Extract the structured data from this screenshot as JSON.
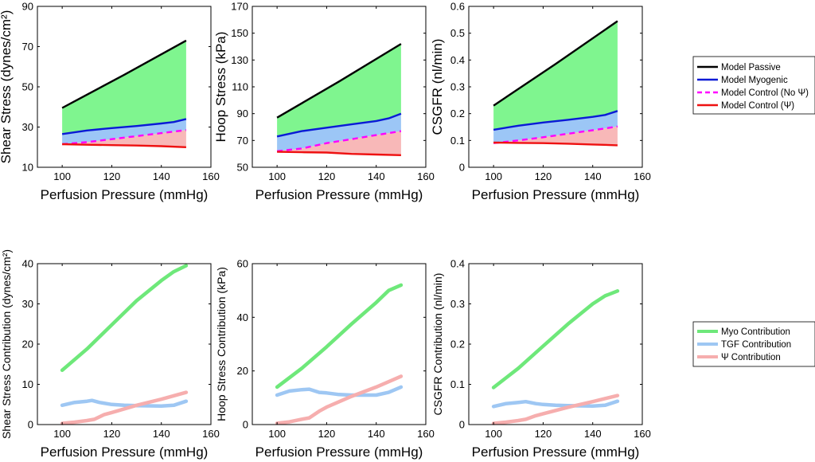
{
  "chart_data": [
    {
      "type": "area",
      "xlabel": "Perfusion Pressure (mmHg)",
      "ylabel": "Shear Stress (dynes/cm²)",
      "xlim": [
        90,
        160
      ],
      "ylim": [
        10,
        90
      ],
      "xticks": [
        "100",
        "120",
        "140",
        "160"
      ],
      "yticks": [
        "10",
        "30",
        "50",
        "70",
        "90"
      ],
      "x": [
        100,
        150
      ],
      "series": [
        {
          "name": "Model Passive",
          "x": [
            100,
            125,
            150
          ],
          "values": [
            39.5,
            56,
            73
          ]
        },
        {
          "name": "Model Myogenic",
          "x": [
            100,
            110,
            120,
            130,
            140,
            145,
            150
          ],
          "values": [
            26.5,
            28.3,
            29.5,
            30.5,
            31.8,
            32.5,
            34
          ]
        },
        {
          "name": "Model Control (No Ψ)",
          "x": [
            100,
            110,
            120,
            130,
            140,
            150
          ],
          "values": [
            21.5,
            22.5,
            24,
            25.5,
            27,
            28.5
          ]
        },
        {
          "name": "Model Control (Ψ)",
          "x": [
            100,
            110,
            120,
            130,
            140,
            150
          ],
          "values": [
            21.5,
            21.2,
            21,
            20.8,
            20.5,
            20
          ]
        }
      ]
    },
    {
      "type": "area",
      "xlabel": "Perfusion Pressure (mmHg)",
      "ylabel": "Hoop Stress (kPa)",
      "xlim": [
        90,
        160
      ],
      "ylim": [
        50,
        170
      ],
      "xticks": [
        "100",
        "120",
        "140",
        "160"
      ],
      "yticks": [
        "50",
        "70",
        "90",
        "110",
        "130",
        "150",
        "170"
      ],
      "x": [
        100,
        150
      ],
      "series": [
        {
          "name": "Model Passive",
          "x": [
            100,
            125,
            150
          ],
          "values": [
            87,
            114,
            142
          ]
        },
        {
          "name": "Model Myogenic",
          "x": [
            100,
            110,
            120,
            130,
            140,
            145,
            150
          ],
          "values": [
            73,
            77,
            79.5,
            82,
            84.5,
            86.5,
            90
          ]
        },
        {
          "name": "Model Control (No Ψ)",
          "x": [
            100,
            110,
            120,
            130,
            140,
            150
          ],
          "values": [
            62,
            64,
            68,
            71,
            74,
            77
          ]
        },
        {
          "name": "Model Control (Ψ)",
          "x": [
            100,
            110,
            120,
            130,
            140,
            150
          ],
          "values": [
            61.5,
            61.2,
            61,
            60,
            59.5,
            59
          ]
        }
      ]
    },
    {
      "type": "area",
      "xlabel": "Perfusion Pressure (mmHg)",
      "ylabel": "CSGFR (nl/min)",
      "xlim": [
        90,
        160
      ],
      "ylim": [
        0,
        0.6
      ],
      "xticks": [
        "100",
        "120",
        "140",
        "160"
      ],
      "yticks": [
        "0",
        "0.1",
        "0.2",
        "0.3",
        "0.4",
        "0.5",
        "0.6"
      ],
      "x": [
        100,
        150
      ],
      "series": [
        {
          "name": "Model Passive",
          "x": [
            100,
            125,
            150
          ],
          "values": [
            0.23,
            0.385,
            0.545
          ]
        },
        {
          "name": "Model Myogenic",
          "x": [
            100,
            110,
            120,
            130,
            140,
            145,
            150
          ],
          "values": [
            0.14,
            0.155,
            0.167,
            0.177,
            0.188,
            0.195,
            0.21
          ]
        },
        {
          "name": "Model Control (No Ψ)",
          "x": [
            100,
            110,
            120,
            130,
            140,
            150
          ],
          "values": [
            0.09,
            0.1,
            0.112,
            0.125,
            0.138,
            0.152
          ]
        },
        {
          "name": "Model Control (Ψ)",
          "x": [
            100,
            110,
            120,
            130,
            140,
            150
          ],
          "values": [
            0.092,
            0.091,
            0.09,
            0.088,
            0.085,
            0.082
          ]
        }
      ]
    },
    {
      "type": "line",
      "xlabel": "Perfusion Pressure (mmHg)",
      "ylabel": "Shear Stress Contribution (dynes/cm²)",
      "xlim": [
        90,
        160
      ],
      "ylim": [
        0,
        40
      ],
      "xticks": [
        "100",
        "120",
        "140",
        "160"
      ],
      "yticks": [
        "0",
        "10",
        "20",
        "30",
        "40"
      ],
      "series": [
        {
          "name": "Myo Contribution",
          "x": [
            100,
            110,
            120,
            130,
            140,
            145,
            150
          ],
          "values": [
            13.5,
            18.8,
            24.8,
            30.8,
            35.8,
            38,
            39.5
          ]
        },
        {
          "name": "TGF Contribution",
          "x": [
            100,
            105,
            110,
            112,
            115,
            120,
            125,
            130,
            140,
            145,
            150
          ],
          "values": [
            4.8,
            5.5,
            5.8,
            6,
            5.5,
            5,
            4.8,
            4.7,
            4.6,
            4.8,
            5.8
          ]
        },
        {
          "name": "Ψ Contribution",
          "x": [
            100,
            105,
            110,
            113,
            117,
            120,
            130,
            140,
            150
          ],
          "values": [
            0.3,
            0.6,
            1,
            1.3,
            2.5,
            3,
            4.8,
            6.3,
            8
          ]
        }
      ]
    },
    {
      "type": "line",
      "xlabel": "Perfusion Pressure (mmHg)",
      "ylabel": "Hoop Stress Contribution (kPa)",
      "xlim": [
        90,
        160
      ],
      "ylim": [
        0,
        60
      ],
      "xticks": [
        "100",
        "120",
        "140",
        "160"
      ],
      "yticks": [
        "0",
        "20",
        "40",
        "60"
      ],
      "series": [
        {
          "name": "Myo Contribution",
          "x": [
            100,
            110,
            120,
            130,
            140,
            145,
            150
          ],
          "values": [
            14,
            21,
            29,
            37.5,
            45.5,
            50,
            52
          ]
        },
        {
          "name": "TGF Contribution",
          "x": [
            100,
            105,
            110,
            113,
            117,
            120,
            125,
            130,
            140,
            145,
            150
          ],
          "values": [
            11,
            12.5,
            13,
            13.2,
            12,
            11.8,
            11.2,
            11,
            11,
            12,
            14
          ]
        },
        {
          "name": "Ψ Contribution",
          "x": [
            100,
            105,
            110,
            113,
            117,
            120,
            130,
            140,
            150
          ],
          "values": [
            0.5,
            1,
            2,
            2.5,
            5,
            6.5,
            10.5,
            14,
            18
          ]
        }
      ]
    },
    {
      "type": "line",
      "xlabel": "Perfusion Pressure (mmHg)",
      "ylabel": "CSGFR Contribution (nl/min)",
      "xlim": [
        90,
        160
      ],
      "ylim": [
        0,
        0.4
      ],
      "xticks": [
        "100",
        "120",
        "140",
        "160"
      ],
      "yticks": [
        "0",
        "0.1",
        "0.2",
        "0.3",
        "0.4"
      ],
      "series": [
        {
          "name": "Myo Contribution",
          "x": [
            100,
            110,
            120,
            130,
            140,
            145,
            150
          ],
          "values": [
            0.092,
            0.14,
            0.195,
            0.25,
            0.3,
            0.32,
            0.332
          ]
        },
        {
          "name": "TGF Contribution",
          "x": [
            100,
            105,
            110,
            113,
            117,
            120,
            125,
            130,
            140,
            145,
            150
          ],
          "values": [
            0.045,
            0.052,
            0.055,
            0.057,
            0.052,
            0.05,
            0.048,
            0.047,
            0.046,
            0.048,
            0.058
          ]
        },
        {
          "name": "Ψ Contribution",
          "x": [
            100,
            105,
            110,
            113,
            117,
            120,
            130,
            140,
            150
          ],
          "values": [
            0.003,
            0.006,
            0.01,
            0.013,
            0.022,
            0.027,
            0.043,
            0.057,
            0.072
          ]
        }
      ]
    }
  ],
  "legend_top": {
    "entries": [
      {
        "label": "Model Passive",
        "color": "#000000",
        "style": "solid"
      },
      {
        "label": "Model Myogenic",
        "color": "#0a1ad6",
        "style": "solid"
      },
      {
        "label": "Model Control (No Ψ)",
        "color": "#ff00ff",
        "style": "dashed"
      },
      {
        "label": "Model Control (Ψ)",
        "color": "#ee1111",
        "style": "solid"
      }
    ]
  },
  "legend_bottom": {
    "entries": [
      {
        "label": "Myo Contribution",
        "color": "#6ee87a"
      },
      {
        "label": "TGF Contribution",
        "color": "#9ec7f3"
      },
      {
        "label": "Ψ Contribution",
        "color": "#f6aeae"
      }
    ]
  },
  "fill_colors": {
    "passive_myogenic": "#7ff58f",
    "myogenic_control": "#9cc6f6",
    "control_band": "#f8b8b8"
  }
}
